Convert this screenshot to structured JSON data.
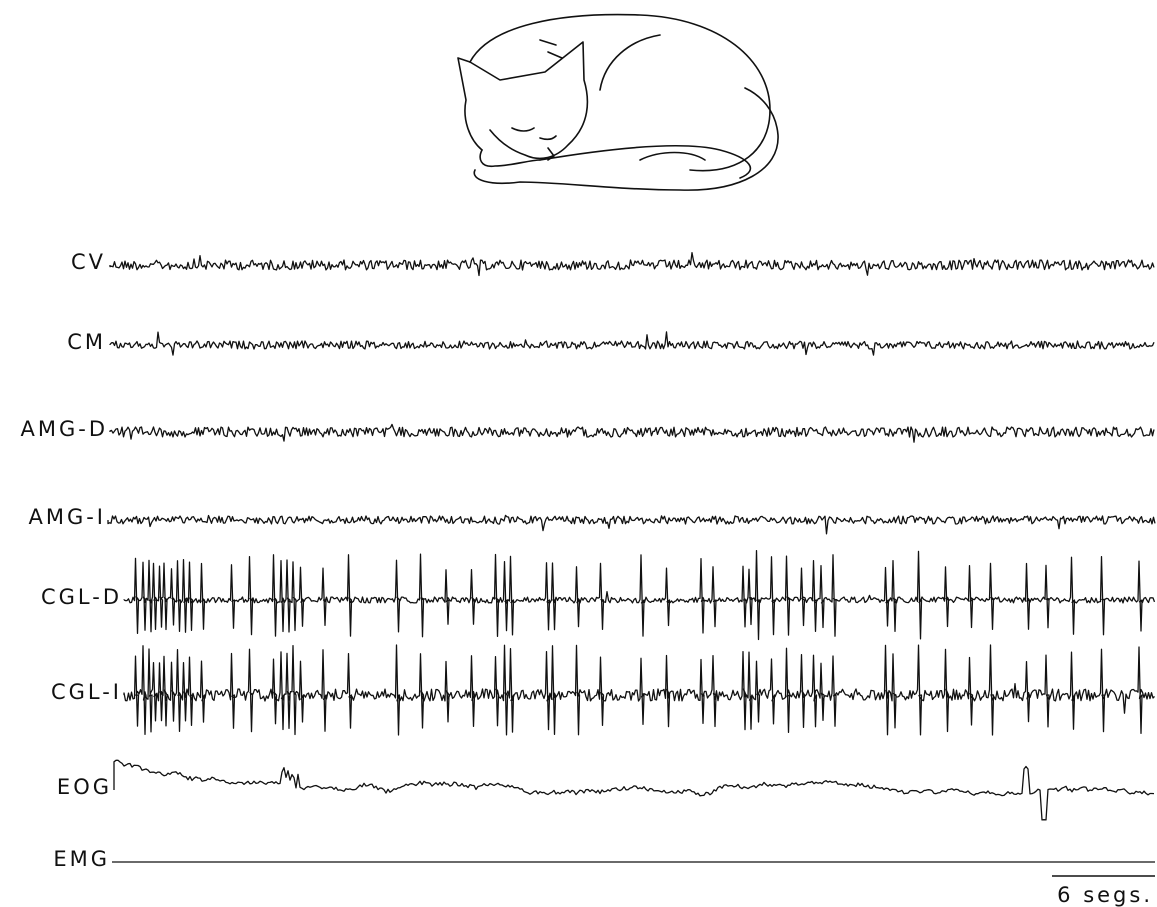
{
  "channels": [
    {
      "label": "CV"
    },
    {
      "label": "CM"
    },
    {
      "label": "AMG-D"
    },
    {
      "label": "AMG-I"
    },
    {
      "label": "CGL-D"
    },
    {
      "label": "CGL-I"
    },
    {
      "label": "EOG"
    },
    {
      "label": "EMG"
    }
  ],
  "scale_bar": {
    "label": "6 segs."
  }
}
